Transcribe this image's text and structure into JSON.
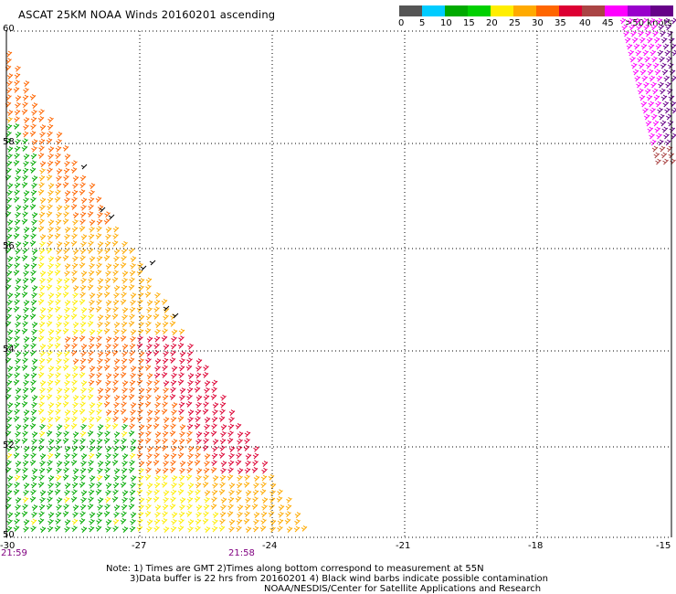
{
  "title": "ASCAT 25KM NOAA Winds 20160201 ascending",
  "legend": {
    "colors": [
      "#555555",
      "#00ccff",
      "#00aa00",
      "#00d000",
      "#ffee00",
      "#ffaa00",
      "#ff6600",
      "#dd0033",
      "#aa4444",
      "#ff00ff",
      "#9900cc",
      "#660088"
    ],
    "labels": [
      "0",
      "5",
      "10",
      "15",
      "20",
      "25",
      "30",
      "35",
      "40",
      "45"
    ],
    "upper_label": ">50",
    "units": "knots"
  },
  "axes": {
    "lat_labels": [
      "60",
      "58",
      "56",
      "54",
      "52",
      "50"
    ],
    "lon_labels": [
      "-30",
      "-27",
      "-24",
      "-21",
      "-18",
      "-15"
    ],
    "lat_range": [
      50,
      60
    ],
    "lon_range": [
      -30,
      -15
    ]
  },
  "times": [
    "21:59",
    "21:58"
  ],
  "notes": {
    "line1": "Note: 1) Times are GMT 2)Times along bottom correspond to measurement at 55N",
    "line2": "3)Data buffer is 22 hrs from 20160201 4) Black wind barbs indicate possible contamination",
    "line3": "NOAA/NESDIS/Center for Satellite Applications and Research"
  },
  "colors": {
    "grid": "#000000",
    "time_text": "#800080"
  }
}
